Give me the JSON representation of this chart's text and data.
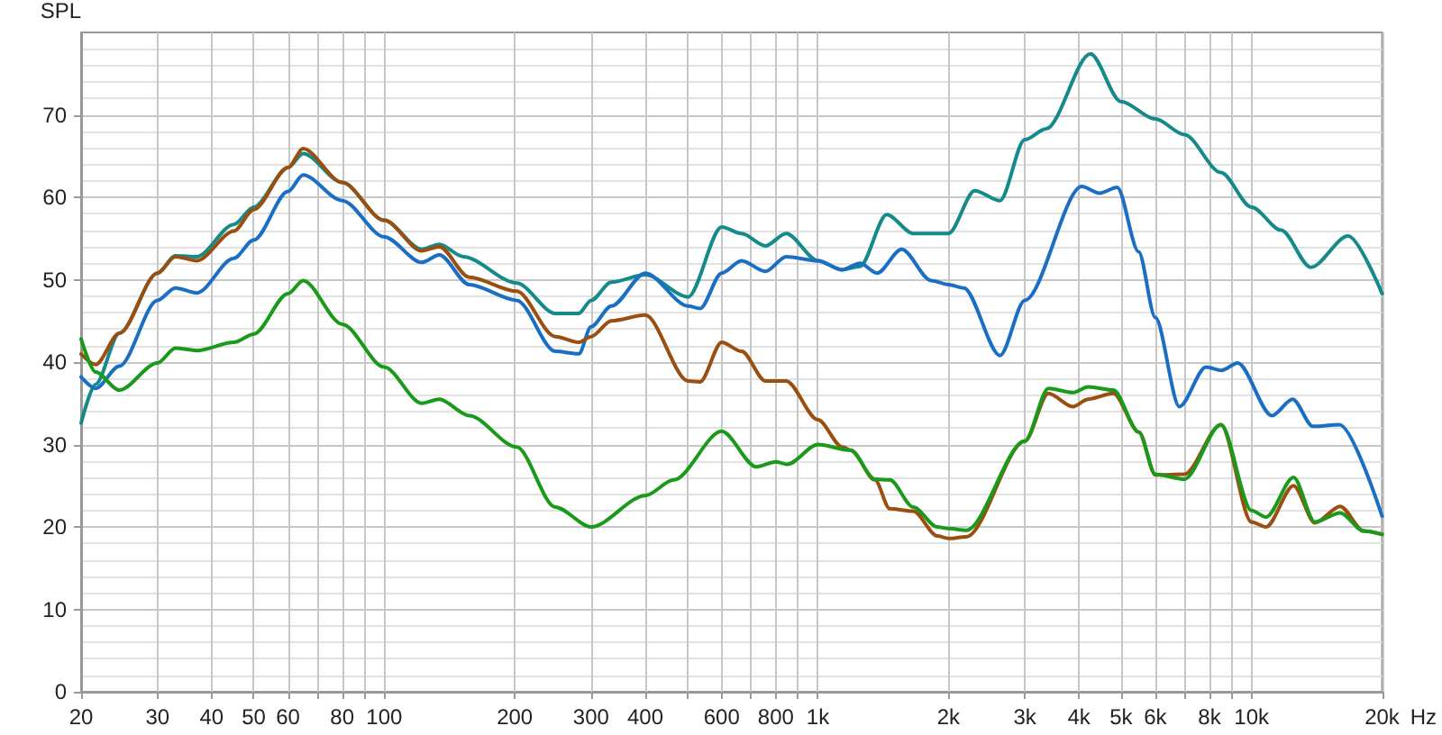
{
  "chart_data": {
    "type": "line",
    "ylabel": "SPL",
    "log": "x",
    "xlabel": "Hz",
    "grid": true,
    "marker": "none",
    "line_style": "solid",
    "xlim": [
      20,
      20000
    ],
    "ylim": [
      0,
      80
    ],
    "xticks": [
      20,
      30,
      40,
      50,
      60,
      {
        "value": 70,
        "label": null
      },
      80,
      {
        "value": 90,
        "label": null
      },
      100,
      200,
      300,
      400,
      {
        "value": 500,
        "label": null
      },
      600,
      {
        "value": 700,
        "label": null
      },
      800,
      {
        "value": 900,
        "label": null
      },
      {
        "value": 1000,
        "label": "1k"
      },
      {
        "value": 2000,
        "label": "2k"
      },
      {
        "value": 3000,
        "label": "3k"
      },
      {
        "value": 4000,
        "label": "4k"
      },
      {
        "value": 5000,
        "label": "5k"
      },
      {
        "value": 6000,
        "label": "6k"
      },
      {
        "value": 7000,
        "label": null
      },
      {
        "value": 8000,
        "label": "8k"
      },
      {
        "value": 9000,
        "label": null
      },
      {
        "value": 10000,
        "label": "10k"
      },
      {
        "value": 20000,
        "label": "20k"
      }
    ],
    "yticks": [
      0,
      10,
      20,
      30,
      40,
      50,
      60,
      70
    ],
    "series": [
      {
        "color": "#158a8a",
        "x": [
          20,
          21.6,
          24.5,
          30,
          33,
          37,
          45,
          50,
          60,
          65,
          80,
          100,
          122,
          134,
          152,
          202,
          248,
          281,
          300,
          334,
          400,
          502,
          600,
          667,
          757,
          845,
          1000,
          1138,
          1250,
          1441,
          1660,
          2000,
          2300,
          2630,
          3000,
          3360,
          4250,
          5000,
          6000,
          7000,
          8500,
          10000,
          11700,
          13700,
          16700,
          20000
        ],
        "values": [
          32.6,
          37.3,
          43.5,
          50.8,
          52.9,
          52.8,
          56.7,
          58.8,
          63.6,
          65.3,
          61.8,
          57.2,
          53.7,
          54.3,
          52.8,
          49.6,
          45.9,
          45.9,
          47.5,
          49.7,
          50.6,
          47.9,
          56.4,
          55.6,
          54.1,
          55.6,
          52.3,
          51.2,
          51.6,
          57.9,
          55.6,
          55.6,
          60.8,
          59.6,
          67,
          68.3,
          77.4,
          71.6,
          69.5,
          67.6,
          63,
          58.8,
          56,
          51.5,
          55.3,
          48.3
        ]
      },
      {
        "color": "#1a6fc4",
        "x": [
          20,
          21.6,
          24.5,
          30,
          33,
          37,
          45,
          50,
          60,
          65,
          80,
          100,
          122,
          134,
          157,
          202,
          248,
          281,
          300,
          334,
          400,
          502,
          535,
          600,
          667,
          757,
          845,
          1000,
          1138,
          1250,
          1370,
          1560,
          1825,
          2000,
          2170,
          2630,
          3000,
          4060,
          4460,
          4900,
          5490,
          6000,
          6820,
          7850,
          8530,
          9290,
          11140,
          12440,
          13850,
          15950,
          20000
        ],
        "values": [
          38.2,
          36.8,
          39.5,
          47.5,
          49,
          48.4,
          52.6,
          54.8,
          60.7,
          62.7,
          59.6,
          55.2,
          52.1,
          53,
          49.4,
          47.5,
          41.3,
          41,
          44.3,
          46.8,
          50.8,
          46.8,
          46.5,
          50.8,
          52.3,
          51,
          52.8,
          52.3,
          51.2,
          52,
          50.8,
          53.7,
          49.9,
          49.4,
          49,
          40.8,
          47.5,
          61.3,
          60.5,
          61.2,
          53.4,
          45.4,
          34.6,
          39.4,
          39,
          39.9,
          33.5,
          35.5,
          32.2,
          32.4,
          21.3
        ]
      },
      {
        "color": "#9a4f10",
        "x": [
          20,
          21.6,
          24.5,
          30,
          33,
          37,
          45,
          50,
          60,
          65,
          80,
          100,
          122,
          134,
          157,
          202,
          248,
          281,
          300,
          334,
          400,
          502,
          535,
          600,
          667,
          757,
          845,
          1000,
          1138,
          1191,
          1354,
          1465,
          1660,
          1885,
          2000,
          2200,
          3000,
          3400,
          3870,
          4200,
          4800,
          5500,
          6000,
          7000,
          8500,
          10000,
          10800,
          12500,
          14000,
          16000,
          18150,
          20000
        ],
        "values": [
          41,
          39.7,
          43.5,
          50.8,
          52.8,
          52.3,
          55.9,
          58.5,
          63.6,
          65.9,
          61.8,
          57.2,
          53.5,
          54,
          50.3,
          48.6,
          43.1,
          42.4,
          43.1,
          45,
          45.7,
          37.7,
          37.6,
          42.4,
          41.3,
          37.7,
          37.7,
          33,
          29.7,
          29.3,
          25.7,
          22.2,
          21.9,
          18.9,
          18.6,
          18.8,
          30.4,
          36.2,
          34.6,
          35.5,
          36.2,
          31.5,
          26.3,
          26.4,
          32.4,
          20.6,
          20,
          25,
          20.5,
          22.5,
          19.5,
          19.1
        ]
      },
      {
        "color": "#1a9a1a",
        "x": [
          20,
          21.6,
          24.5,
          30,
          33,
          37,
          45,
          50,
          60,
          65,
          80,
          100,
          122,
          134,
          157,
          202,
          248,
          300,
          400,
          465,
          600,
          721,
          800,
          850,
          1000,
          1191,
          1354,
          1465,
          1660,
          1885,
          2000,
          2200,
          3000,
          3400,
          3870,
          4200,
          4800,
          5500,
          6000,
          7000,
          8500,
          10000,
          10800,
          12500,
          14000,
          16000,
          18150,
          20000
        ],
        "values": [
          42.8,
          38.8,
          36.6,
          39.9,
          41.7,
          41.4,
          42.4,
          43.4,
          48.3,
          49.9,
          44.6,
          39.4,
          35,
          35.5,
          33.5,
          29.7,
          22.4,
          20,
          23.8,
          25.7,
          31.6,
          27.3,
          27.9,
          27.6,
          30,
          29.3,
          25.8,
          25.7,
          22.4,
          20,
          19.8,
          19.6,
          30.4,
          36.8,
          36.3,
          37,
          36.6,
          31.5,
          26.4,
          25.8,
          32.4,
          22,
          21.2,
          26,
          20.6,
          21.7,
          19.5,
          19.1
        ]
      }
    ]
  }
}
